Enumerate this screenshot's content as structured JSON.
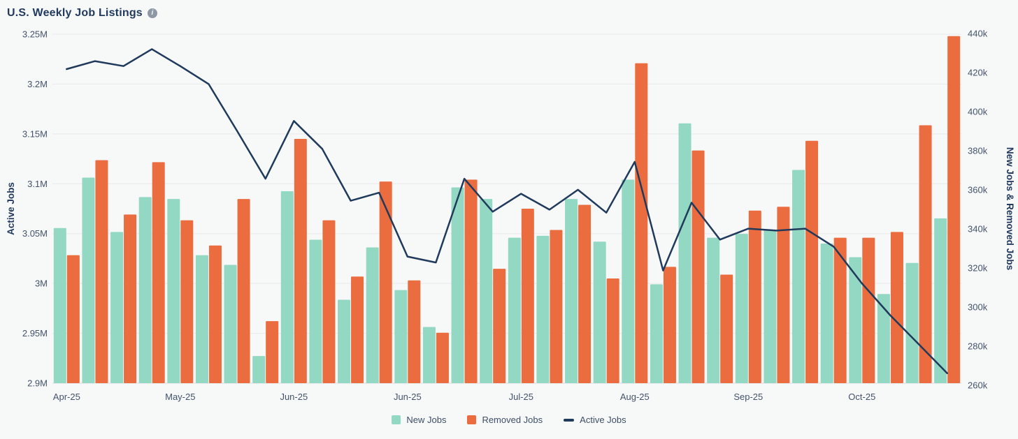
{
  "title": "U.S. Weekly Job Listings",
  "icons": {
    "info": "i"
  },
  "colors": {
    "background": "#f7f8f8",
    "title": "#223a5e",
    "axis_text": "#44536b",
    "gridline": "#e9eaec",
    "baseline": "#d8dadc",
    "new_jobs": "#92d8c3",
    "removed_jobs": "#ea6c3f",
    "active_jobs": "#203a5c"
  },
  "chart_data": {
    "type": "bar",
    "subtype": "grouped-bars-with-line-overlay",
    "x_unit": "week",
    "num_weeks": 32,
    "x_ticks": [
      {
        "index": 0,
        "label": "Apr-25"
      },
      {
        "index": 4,
        "label": "May-25"
      },
      {
        "index": 8,
        "label": "Jun-25"
      },
      {
        "index": 12,
        "label": "Jun-25"
      },
      {
        "index": 16,
        "label": "Jul-25"
      },
      {
        "index": 20,
        "label": "Aug-25"
      },
      {
        "index": 24,
        "label": "Sep-25"
      },
      {
        "index": 28,
        "label": "Oct-25"
      }
    ],
    "left_axis": {
      "label": "Active Jobs",
      "unit": "millions",
      "min": 2.9,
      "max": 3.25,
      "ticks": [
        "3.25M",
        "3.2M",
        "3.15M",
        "3.1M",
        "3.05M",
        "3M",
        "2.95M",
        "2.9M"
      ]
    },
    "right_axis": {
      "label": "New Jobs & Removed Jobs",
      "unit": "thousands",
      "min": 260,
      "max": 440,
      "ticks": [
        "440k",
        "420k",
        "400k",
        "380k",
        "360k",
        "340k",
        "320k",
        "300k",
        "280k",
        "260k"
      ]
    },
    "series": [
      {
        "name": "New Jobs",
        "type": "bar",
        "axis": "right",
        "unit": "thousands",
        "color": "#92d8c3",
        "values": [
          340,
          366,
          338,
          356,
          355,
          326,
          321,
          274,
          359,
          334,
          303,
          330,
          308,
          289,
          361,
          355,
          335,
          336,
          355,
          333,
          365,
          311,
          394,
          335,
          337,
          339,
          370,
          332,
          325,
          306,
          322,
          345
        ]
      },
      {
        "name": "Removed Jobs",
        "type": "bar",
        "axis": "right",
        "unit": "thousands",
        "color": "#ea6c3f",
        "values": [
          326,
          375,
          347,
          374,
          344,
          331,
          355,
          292,
          386,
          344,
          315,
          364,
          313,
          286,
          365,
          319,
          350,
          339,
          352,
          314,
          425,
          320,
          380,
          316,
          349,
          351,
          385,
          335,
          335,
          338,
          393,
          439
        ]
      },
      {
        "name": "Active Jobs",
        "type": "line",
        "axis": "left",
        "unit": "millions",
        "color": "#203a5c",
        "values": [
          3.215,
          3.223,
          3.218,
          3.235,
          3.218,
          3.2,
          3.153,
          3.105,
          3.163,
          3.135,
          3.083,
          3.091,
          3.027,
          3.021,
          3.105,
          3.072,
          3.09,
          3.074,
          3.094,
          3.071,
          3.122,
          3.013,
          3.081,
          3.044,
          3.055,
          3.053,
          3.055,
          3.037,
          3.0,
          2.968,
          2.939,
          2.91
        ]
      }
    ],
    "legend": [
      {
        "label": "New Jobs",
        "marker": "square",
        "color": "#92d8c3"
      },
      {
        "label": "Removed Jobs",
        "marker": "square",
        "color": "#ea6c3f"
      },
      {
        "label": "Active Jobs",
        "marker": "dash",
        "color": "#203a5c"
      }
    ],
    "grid": "horizontal",
    "legend_position": "bottom-center"
  }
}
